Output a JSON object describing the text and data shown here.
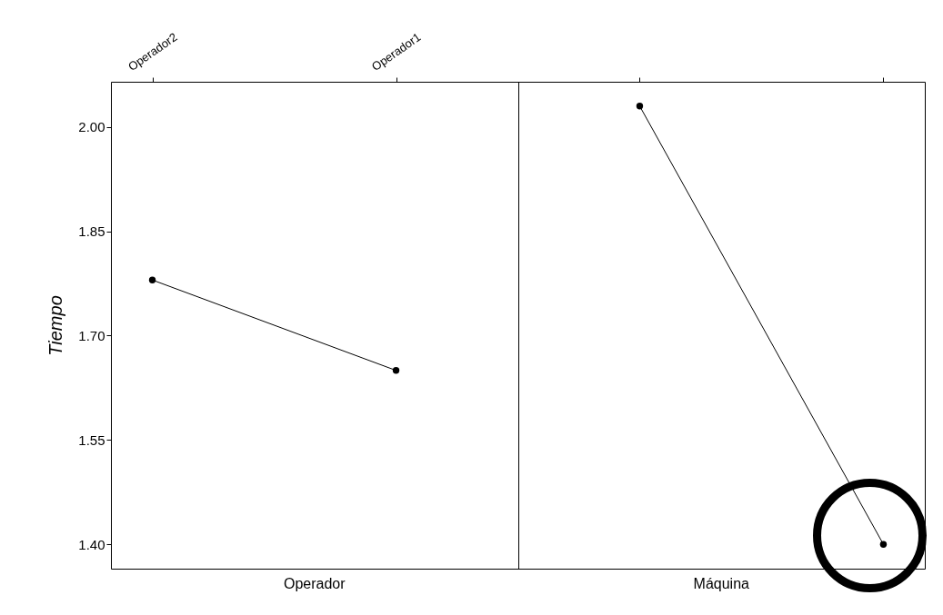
{
  "chart_data": {
    "type": "line",
    "categories": [
      "Operador2",
      "Operador1",
      null,
      null
    ],
    "series": [
      {
        "color": "#000000",
        "values": [
          1.78,
          1.65,
          null,
          null
        ]
      },
      {
        "color": "#000000",
        "values": [
          null,
          null,
          2.03,
          1.4
        ]
      }
    ],
    "marker": "circle",
    "ylabel": "Tiempo",
    "ylim": [
      1.365,
      2.065
    ],
    "yticks": [
      {
        "value": 1.4,
        "label": "1.40"
      },
      {
        "value": 1.55,
        "label": "1.55"
      },
      {
        "value": 1.7,
        "label": "1.70"
      },
      {
        "value": 1.85,
        "label": "1.85"
      },
      {
        "value": 2.0,
        "label": "2.00"
      }
    ],
    "annotations": [
      "Operador",
      "Máquina"
    ]
  }
}
